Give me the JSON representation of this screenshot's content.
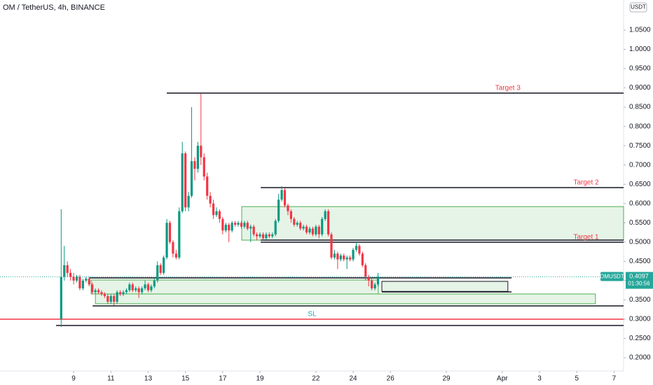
{
  "chart_data": {
    "type": "candlestick",
    "title": "OM / TetherUS, 4h, BINANCE",
    "currency_label": "USDT",
    "up_color": "#089981",
    "down_color": "#f23645",
    "x": [
      -0.667,
      -0.5,
      -0.333,
      -0.167,
      0,
      0.167,
      0.333,
      0.5,
      0.667,
      0.833,
      1,
      1.167,
      1.333,
      1.5,
      1.667,
      1.833,
      2,
      2.167,
      2.333,
      2.5,
      2.667,
      2.833,
      3,
      3.167,
      3.333,
      3.5,
      3.667,
      3.833,
      4,
      4.167,
      4.333,
      4.5,
      4.667,
      4.833,
      5,
      5.167,
      5.333,
      5.5,
      5.667,
      5.833,
      6,
      6.167,
      6.333,
      6.5,
      6.667,
      6.833,
      7,
      7.167,
      7.333,
      7.5,
      7.667,
      7.833,
      8,
      8.167,
      8.333,
      8.5,
      8.667,
      8.833,
      9,
      9.167,
      9.333,
      9.5,
      9.667,
      9.833,
      10,
      10.167,
      10.333,
      10.5,
      10.667,
      10.833,
      11,
      11.167,
      11.333,
      11.5,
      11.667,
      11.833,
      12,
      12.167,
      12.333,
      12.5,
      12.667,
      12.833,
      13,
      13.167,
      13.333,
      13.5,
      13.667,
      13.833,
      14,
      14.167,
      14.333,
      14.5,
      14.667,
      14.833,
      15,
      15.167,
      15.333,
      15.5,
      15.667,
      15.833,
      16,
      16.167,
      16.333
    ],
    "open": [
      0.3,
      0.41,
      0.44,
      0.42,
      0.41,
      0.4,
      0.41,
      0.38,
      0.4,
      0.405,
      0.39,
      0.37,
      0.375,
      0.37,
      0.365,
      0.36,
      0.345,
      0.36,
      0.345,
      0.37,
      0.365,
      0.37,
      0.375,
      0.39,
      0.375,
      0.38,
      0.37,
      0.38,
      0.39,
      0.375,
      0.385,
      0.4,
      0.44,
      0.42,
      0.46,
      0.55,
      0.5,
      0.47,
      0.46,
      0.58,
      0.73,
      0.59,
      0.62,
      0.71,
      0.69,
      0.75,
      0.72,
      0.67,
      0.62,
      0.6,
      0.57,
      0.58,
      0.56,
      0.53,
      0.545,
      0.53,
      0.55,
      0.545,
      0.55,
      0.54,
      0.55,
      0.535,
      0.54,
      0.52,
      0.515,
      0.52,
      0.51,
      0.52,
      0.515,
      0.52,
      0.555,
      0.61,
      0.635,
      0.595,
      0.58,
      0.56,
      0.545,
      0.55,
      0.535,
      0.54,
      0.525,
      0.535,
      0.52,
      0.54,
      0.52,
      0.56,
      0.58,
      0.52,
      0.46,
      0.47,
      0.455,
      0.465,
      0.455,
      0.46,
      0.455,
      0.48,
      0.49,
      0.47,
      0.44,
      0.41,
      0.4,
      0.38,
      0.39
    ],
    "high": [
      0.585,
      0.49,
      0.45,
      0.43,
      0.42,
      0.415,
      0.415,
      0.405,
      0.41,
      0.41,
      0.395,
      0.38,
      0.38,
      0.375,
      0.37,
      0.365,
      0.365,
      0.365,
      0.375,
      0.375,
      0.375,
      0.38,
      0.395,
      0.395,
      0.385,
      0.385,
      0.385,
      0.4,
      0.395,
      0.39,
      0.405,
      0.45,
      0.445,
      0.465,
      0.56,
      0.555,
      0.505,
      0.48,
      0.59,
      0.76,
      0.735,
      0.63,
      0.85,
      0.72,
      0.76,
      0.885,
      0.73,
      0.68,
      0.63,
      0.61,
      0.59,
      0.585,
      0.565,
      0.55,
      0.55,
      0.555,
      0.555,
      0.555,
      0.555,
      0.555,
      0.555,
      0.545,
      0.545,
      0.525,
      0.525,
      0.525,
      0.525,
      0.525,
      0.525,
      0.56,
      0.625,
      0.645,
      0.64,
      0.6,
      0.585,
      0.565,
      0.555,
      0.555,
      0.545,
      0.545,
      0.54,
      0.54,
      0.545,
      0.545,
      0.565,
      0.585,
      0.585,
      0.525,
      0.48,
      0.475,
      0.47,
      0.47,
      0.465,
      0.465,
      0.485,
      0.5,
      0.495,
      0.475,
      0.445,
      0.415,
      0.405,
      0.395,
      0.42
    ],
    "low": [
      0.28,
      0.4,
      0.41,
      0.4,
      0.39,
      0.395,
      0.375,
      0.375,
      0.395,
      0.385,
      0.365,
      0.365,
      0.365,
      0.36,
      0.355,
      0.34,
      0.34,
      0.335,
      0.34,
      0.36,
      0.36,
      0.365,
      0.37,
      0.37,
      0.37,
      0.355,
      0.365,
      0.375,
      0.37,
      0.37,
      0.38,
      0.395,
      0.415,
      0.415,
      0.455,
      0.495,
      0.46,
      0.455,
      0.455,
      0.575,
      0.58,
      0.58,
      0.615,
      0.66,
      0.68,
      0.7,
      0.66,
      0.61,
      0.59,
      0.56,
      0.565,
      0.55,
      0.52,
      0.525,
      0.5,
      0.525,
      0.54,
      0.54,
      0.535,
      0.535,
      0.53,
      0.5,
      0.515,
      0.505,
      0.51,
      0.505,
      0.505,
      0.51,
      0.51,
      0.515,
      0.55,
      0.605,
      0.59,
      0.57,
      0.55,
      0.54,
      0.54,
      0.53,
      0.53,
      0.52,
      0.52,
      0.515,
      0.515,
      0.51,
      0.515,
      0.555,
      0.515,
      0.455,
      0.455,
      0.43,
      0.45,
      0.45,
      0.43,
      0.45,
      0.45,
      0.475,
      0.465,
      0.435,
      0.4,
      0.385,
      0.375,
      0.375,
      0.385
    ],
    "close": [
      0.41,
      0.44,
      0.42,
      0.41,
      0.4,
      0.41,
      0.38,
      0.4,
      0.405,
      0.39,
      0.37,
      0.375,
      0.37,
      0.365,
      0.36,
      0.345,
      0.36,
      0.345,
      0.37,
      0.365,
      0.37,
      0.375,
      0.39,
      0.375,
      0.38,
      0.37,
      0.38,
      0.39,
      0.375,
      0.385,
      0.4,
      0.44,
      0.42,
      0.46,
      0.55,
      0.5,
      0.47,
      0.46,
      0.58,
      0.73,
      0.59,
      0.62,
      0.71,
      0.69,
      0.75,
      0.72,
      0.67,
      0.62,
      0.6,
      0.57,
      0.58,
      0.56,
      0.53,
      0.545,
      0.53,
      0.55,
      0.545,
      0.55,
      0.54,
      0.55,
      0.535,
      0.54,
      0.52,
      0.515,
      0.52,
      0.51,
      0.52,
      0.515,
      0.52,
      0.555,
      0.61,
      0.635,
      0.595,
      0.58,
      0.56,
      0.545,
      0.55,
      0.535,
      0.54,
      0.525,
      0.535,
      0.52,
      0.54,
      0.52,
      0.56,
      0.58,
      0.52,
      0.46,
      0.47,
      0.455,
      0.465,
      0.455,
      0.46,
      0.455,
      0.48,
      0.49,
      0.47,
      0.44,
      0.41,
      0.4,
      0.38,
      0.39,
      0.41
    ],
    "xlim": [
      -3.95,
      29.51
    ],
    "ylim": [
      0.1655,
      1.128
    ],
    "xticks": [
      {
        "value": 0,
        "label": "9"
      },
      {
        "value": 2,
        "label": "11"
      },
      {
        "value": 4,
        "label": "13"
      },
      {
        "value": 6,
        "label": "15"
      },
      {
        "value": 8,
        "label": "17"
      },
      {
        "value": 10,
        "label": "19"
      },
      {
        "value": 13,
        "label": "22"
      },
      {
        "value": 15,
        "label": "24"
      },
      {
        "value": 17,
        "label": "26"
      },
      {
        "value": 20,
        "label": "29"
      },
      {
        "value": 23,
        "label": "Apr"
      },
      {
        "value": 25,
        "label": "3"
      },
      {
        "value": 27,
        "label": "5"
      },
      {
        "value": 29,
        "label": "7"
      }
    ],
    "yticks": [
      {
        "value": 0.2,
        "label": "0.2000"
      },
      {
        "value": 0.25,
        "label": "0.2500"
      },
      {
        "value": 0.3,
        "label": "0.3000"
      },
      {
        "value": 0.35,
        "label": "0.3500"
      },
      {
        "value": 0.4,
        "label": "0.4000"
      },
      {
        "value": 0.45,
        "label": "0.4500"
      },
      {
        "value": 0.5,
        "label": "0.5000"
      },
      {
        "value": 0.55,
        "label": "0.5500"
      },
      {
        "value": 0.6,
        "label": "0.6000"
      },
      {
        "value": 0.65,
        "label": "0.6500"
      },
      {
        "value": 0.7,
        "label": "0.7000"
      },
      {
        "value": 0.75,
        "label": "0.7500"
      },
      {
        "value": 0.8,
        "label": "0.8000"
      },
      {
        "value": 0.85,
        "label": "0.8500"
      },
      {
        "value": 0.9,
        "label": "0.9000"
      },
      {
        "value": 0.95,
        "label": "0.9500"
      },
      {
        "value": 1.0,
        "label": "1.0000"
      },
      {
        "value": 1.05,
        "label": "1.0500"
      }
    ],
    "boxes": [
      {
        "y1": 0.505,
        "y2": 0.592,
        "x1": 9.02,
        "x2": 29.51,
        "fill": "#e6f4e7",
        "stroke": "#4caf50"
      },
      {
        "y1": 0.3653,
        "y2": 0.4016,
        "x1": 0.94,
        "x2": 16.35,
        "fill": "#e6f4e7",
        "stroke": "#4caf50"
      },
      {
        "y1": 0.34,
        "y2": 0.3653,
        "x1": 1.17,
        "x2": 28.0,
        "fill": "#e6f4e7",
        "stroke": "#4caf50"
      },
      {
        "y1": 0.372,
        "y2": 0.398,
        "x1": 16.54,
        "x2": 23.3,
        "fill": "#e6f4e7",
        "stroke": "#131722"
      }
    ],
    "levels": [
      {
        "y": 0.8865,
        "x1": 5.0,
        "x2": 29.51,
        "color": "#131722",
        "label": "Target 3",
        "label_x": 23.3,
        "label_color": "#f23645"
      },
      {
        "y": 0.6413,
        "x1": 10.04,
        "x2": 29.51,
        "color": "#131722",
        "label": "Target 2",
        "label_x": 27.5,
        "label_color": "#f23645"
      },
      {
        "y": 0.5051,
        "x1": 10.04,
        "x2": 29.51,
        "color": "#131722"
      },
      {
        "y": 0.4997,
        "x1": 10.04,
        "x2": 29.51,
        "color": "#131722",
        "label": "Target 1",
        "label_x": 27.5,
        "label_color": "#f23645"
      },
      {
        "y": 0.407,
        "x1": 0.86,
        "x2": 23.5,
        "color": "#131722"
      },
      {
        "y": 0.3707,
        "x1": 16.54,
        "x2": 23.5,
        "color": "#131722"
      },
      {
        "y": 0.3344,
        "x1": 1.02,
        "x2": 29.51,
        "color": "#131722"
      },
      {
        "y": 0.3,
        "x1": -3.95,
        "x2": 29.51,
        "color": "#f23645",
        "label": "SL",
        "label_x": 12.8,
        "label_color": "#22a6b3"
      },
      {
        "y": 0.2835,
        "x1": -0.94,
        "x2": 29.51,
        "color": "#131722"
      }
    ],
    "last_price": {
      "name": "OMUSDT",
      "value": 0.4097,
      "countdown": "01:30:56",
      "color": "#26a69a"
    }
  }
}
